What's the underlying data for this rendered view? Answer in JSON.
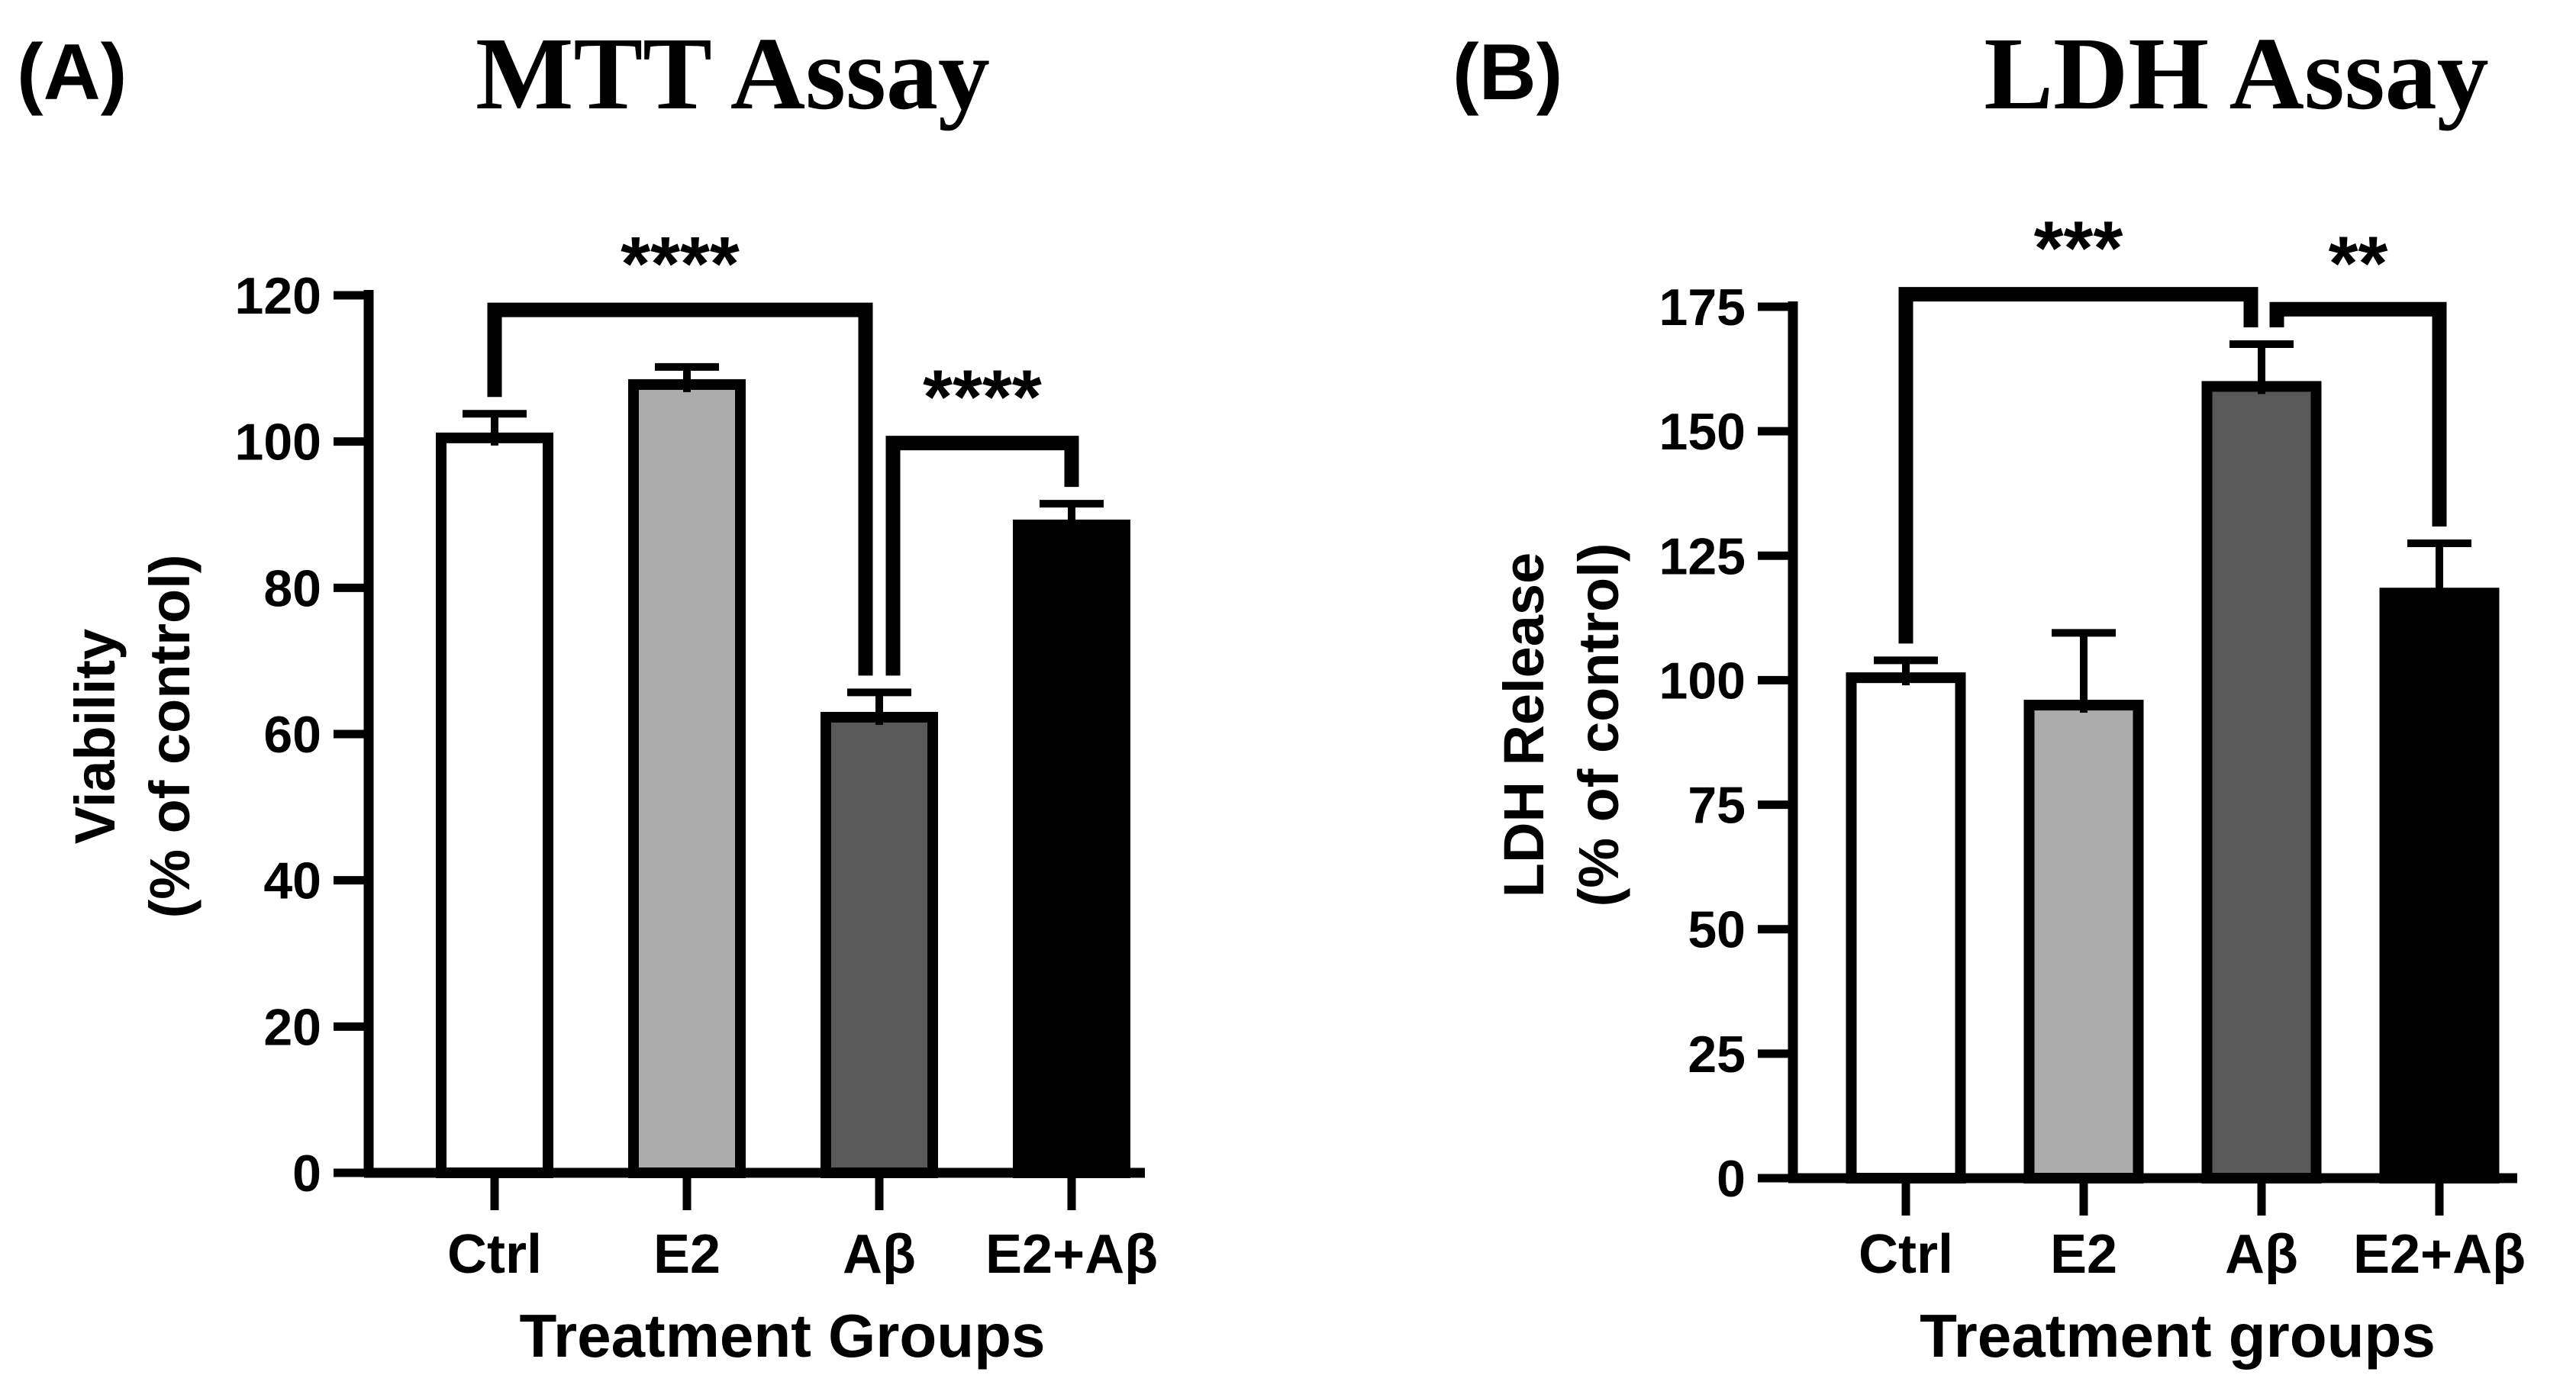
{
  "figure_background": "#ffffff",
  "chart_data": [
    {
      "type": "bar",
      "panel_letter": "(A)",
      "title": "MTT Assay",
      "ylabel_lines": [
        "Viability",
        "(% of control)"
      ],
      "xlabel": "Treatment Groups",
      "categories": [
        "Ctrl",
        "E2",
        "Aβ",
        "E2+Aβ"
      ],
      "values": [
        100.5,
        107.8,
        62.3,
        88.6
      ],
      "errors": [
        3.3,
        2.4,
        3.4,
        2.9
      ],
      "bar_fills": [
        "#ffffff",
        "#ababab",
        "#595959",
        "#000000"
      ],
      "bar_edge_color": "#000000",
      "yticks": [
        0,
        20,
        40,
        60,
        80,
        100,
        120
      ],
      "ylim": [
        0,
        120
      ],
      "grid": "off",
      "significance": [
        {
          "from": "Ctrl",
          "to": "Aβ",
          "label": "****",
          "height_value": 118
        },
        {
          "from": "Aβ",
          "to": "E2+Aβ",
          "label": "****",
          "height_value": 99.8
        }
      ]
    },
    {
      "type": "bar",
      "panel_letter": "(B)",
      "title": "LDH Assay",
      "ylabel_lines": [
        "LDH Release",
        "(% of control)"
      ],
      "xlabel": "Treatment groups",
      "categories": [
        "Ctrl",
        "E2",
        "Aβ",
        "E2+Aβ"
      ],
      "values": [
        100.5,
        95,
        159,
        117.5
      ],
      "errors": [
        3.5,
        14.5,
        8.5,
        10
      ],
      "bar_fills": [
        "#ffffff",
        "#ababab",
        "#595959",
        "#000000"
      ],
      "bar_edge_color": "#000000",
      "yticks": [
        0,
        25,
        50,
        75,
        100,
        125,
        150,
        175
      ],
      "ylim": [
        0,
        175
      ],
      "grid": "off",
      "significance": [
        {
          "from": "Ctrl",
          "to": "Aβ",
          "label": "***",
          "height_value": 177.5
        },
        {
          "from": "Aβ",
          "to": "E2+Aβ",
          "label": "**",
          "height_value": 174.5
        }
      ]
    }
  ]
}
